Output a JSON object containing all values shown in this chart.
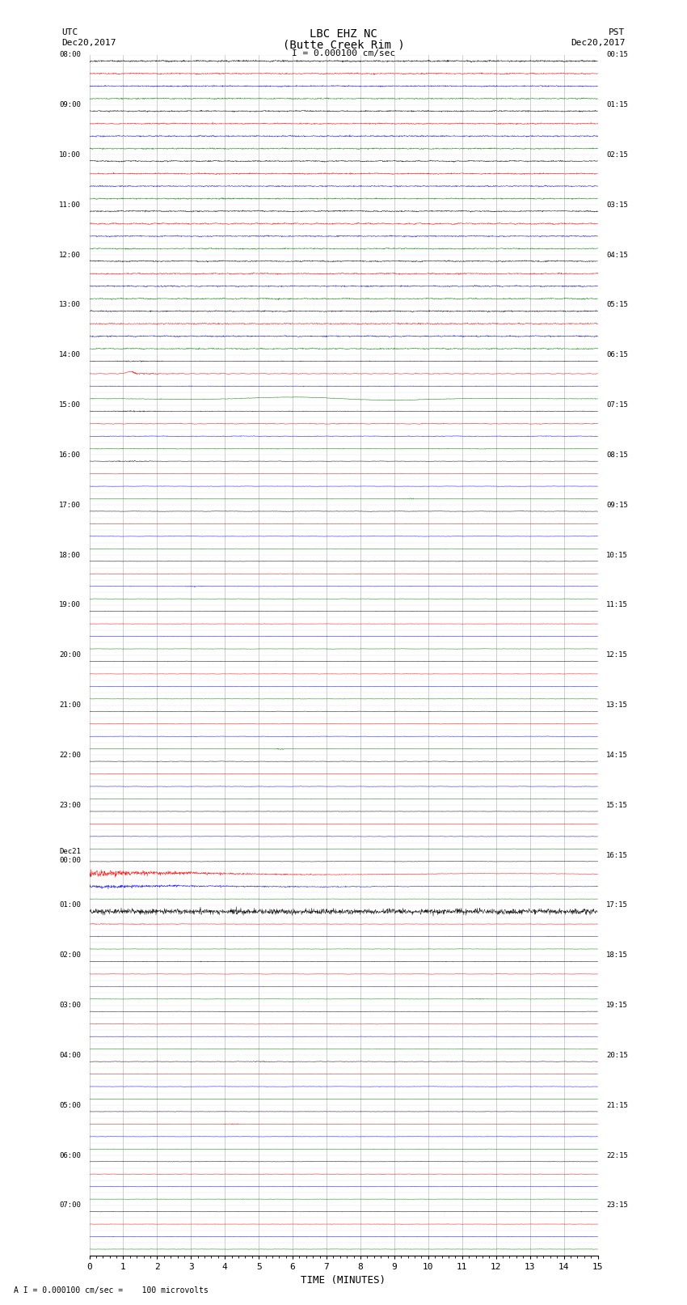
{
  "title_line1": "LBC EHZ NC",
  "title_line2": "(Butte Creek Rim )",
  "scale_label": "I = 0.000100 cm/sec",
  "xlabel": "TIME (MINUTES)",
  "bottom_label": "A I = 0.000100 cm/sec =    100 microvolts",
  "utc_display": [
    "08:00",
    "09:00",
    "10:00",
    "11:00",
    "12:00",
    "13:00",
    "14:00",
    "15:00",
    "16:00",
    "17:00",
    "18:00",
    "19:00",
    "20:00",
    "21:00",
    "22:00",
    "23:00",
    "Dec21|00:00",
    "01:00",
    "02:00",
    "03:00",
    "04:00",
    "05:00",
    "06:00",
    "07:00"
  ],
  "pst_display": [
    "00:15",
    "01:15",
    "02:15",
    "03:15",
    "04:15",
    "05:15",
    "06:15",
    "07:15",
    "08:15",
    "09:15",
    "10:15",
    "11:15",
    "12:15",
    "13:15",
    "14:15",
    "15:15",
    "16:15",
    "17:15",
    "18:15",
    "19:15",
    "20:15",
    "21:15",
    "22:15",
    "23:15"
  ],
  "num_rows": 96,
  "trace_colors": [
    "black",
    "red",
    "blue",
    "green"
  ],
  "bg_color": "white",
  "grid_color": "#aaaaaa",
  "xmin": 0,
  "xmax": 15,
  "xticks": [
    0,
    1,
    2,
    3,
    4,
    5,
    6,
    7,
    8,
    9,
    10,
    11,
    12,
    13,
    14,
    15
  ]
}
